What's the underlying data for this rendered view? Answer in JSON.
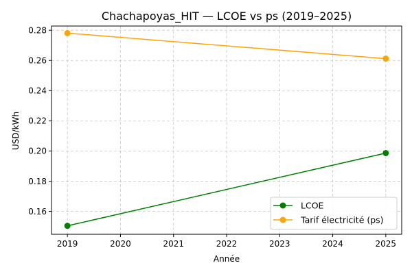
{
  "chart_data": {
    "type": "line",
    "title": "Chachapoyas_HIT — LCOE vs ps (2019–2025)",
    "xlabel": "Année",
    "ylabel": "USD/kWh",
    "x": [
      2019,
      2025
    ],
    "x_ticks": [
      "2019",
      "2020",
      "2021",
      "2022",
      "2023",
      "2024",
      "2025"
    ],
    "y_ticks": [
      "0.16",
      "0.18",
      "0.20",
      "0.22",
      "0.24",
      "0.26",
      "0.28"
    ],
    "xlim": [
      2018.7,
      2025.3
    ],
    "ylim": [
      0.1448,
      0.2828
    ],
    "grid": true,
    "legend_position": "lower-right",
    "series": [
      {
        "name": "LCOE",
        "color": "#008000",
        "marker": "circle",
        "values": [
          0.1504,
          0.1986
        ]
      },
      {
        "name": "Tarif électricité (ps)",
        "color": "#FFA500",
        "marker": "circle",
        "values": [
          0.2781,
          0.2612
        ]
      }
    ]
  }
}
